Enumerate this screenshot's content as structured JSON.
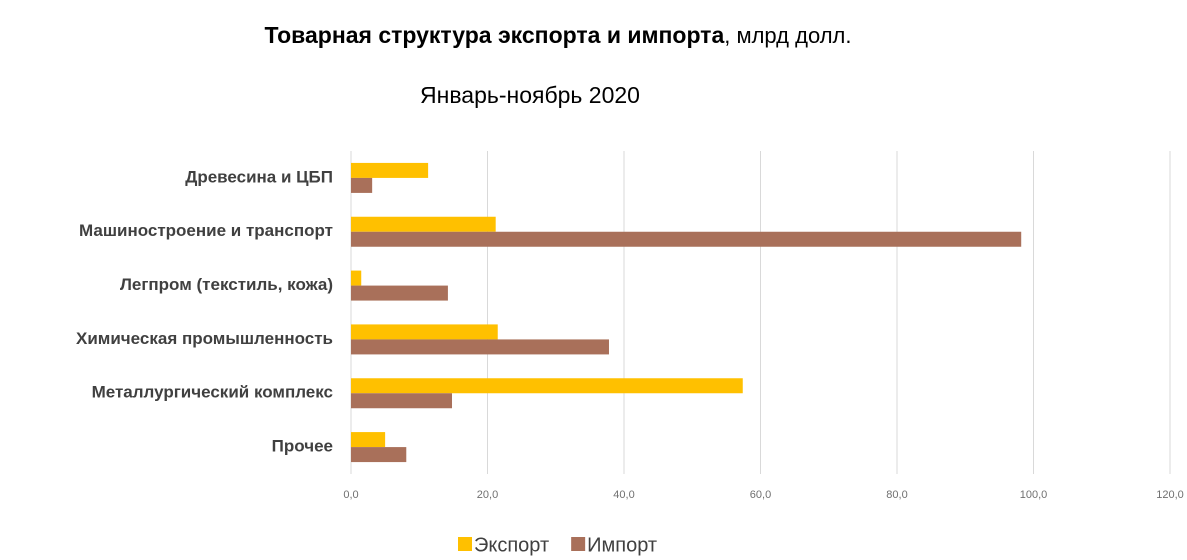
{
  "chart_data": {
    "type": "hbar",
    "title": "Товарная структура экспорта и импорта",
    "title_unit": ", млрд долл.",
    "subtitle": "Январь-ноябрь 2020",
    "categories": [
      "Древесина и ЦБП",
      "Машиностроение и транспорт",
      "Легпром (текстиль, кожа)",
      "Химическая промышленность",
      "Металлургический комплекс",
      "Прочее"
    ],
    "series": [
      {
        "name": "Экспорт",
        "color": "#FFC000",
        "values": [
          11.3,
          21.2,
          1.5,
          21.5,
          57.4,
          5.0
        ]
      },
      {
        "name": "Импорт",
        "color": "#A9705A",
        "values": [
          3.1,
          98.2,
          14.2,
          37.8,
          14.8,
          8.1
        ]
      }
    ],
    "xlim": [
      0,
      120
    ],
    "xticks": [
      {
        "value": 0,
        "label": "0,0"
      },
      {
        "value": 20,
        "label": "20,0"
      },
      {
        "value": 40,
        "label": "40,0"
      },
      {
        "value": 60,
        "label": "60,0"
      },
      {
        "value": 80,
        "label": "80,0"
      },
      {
        "value": 100,
        "label": "100,0"
      },
      {
        "value": 120,
        "label": "120,0"
      }
    ],
    "grid": true,
    "legend": "bottom"
  }
}
